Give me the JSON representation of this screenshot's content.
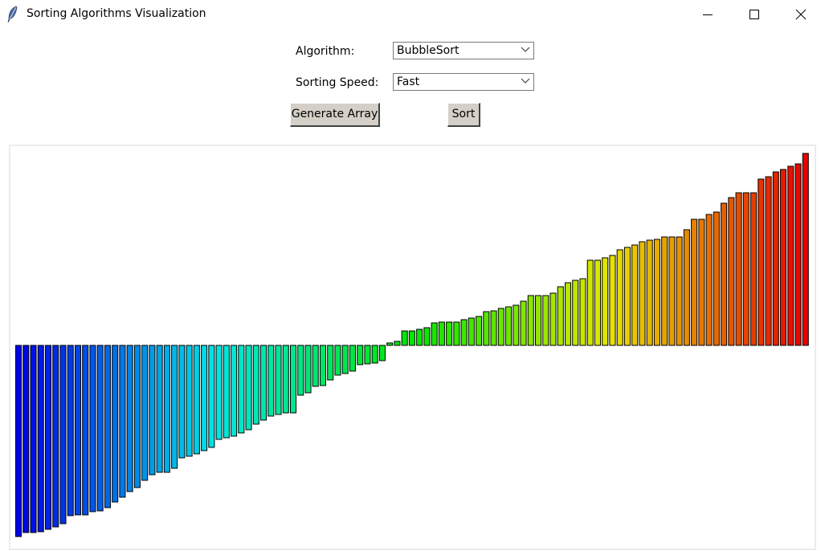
{
  "window": {
    "title": "Sorting Algorithms Visualization",
    "icon": "feather-icon",
    "controls": [
      "minimize-icon",
      "maximize-icon",
      "close-icon"
    ]
  },
  "controls": {
    "algorithm_label": "Algorithm:",
    "algorithm_value": "BubbleSort",
    "speed_label": "Sorting Speed:",
    "speed_value": "Fast",
    "generate_button": "Generate Array",
    "sort_button": "Sort"
  },
  "colors": {
    "button_face": "#d4d0c8",
    "bar_outline": "#000000",
    "gradient_start": "#0000e0",
    "gradient_end": "#e00000"
  },
  "chart_data": {
    "type": "bar",
    "values": [
      238,
      233,
      233,
      232,
      229,
      226,
      222,
      212,
      211,
      211,
      207,
      206,
      202,
      195,
      189,
      182,
      177,
      168,
      161,
      158,
      158,
      153,
      140,
      138,
      135,
      131,
      127,
      117,
      115,
      113,
      109,
      105,
      98,
      93,
      88,
      86,
      84,
      84,
      62,
      59,
      51,
      50,
      43,
      37,
      35,
      32,
      24,
      23,
      22,
      19,
      -3,
      -5,
      -18,
      -18,
      -20,
      -22,
      -28,
      -29,
      -29,
      -29,
      -32,
      -34,
      -36,
      -42,
      -43,
      -46,
      -48,
      -50,
      -55,
      -62,
      -62,
      -62,
      -65,
      -73,
      -78,
      -81,
      -83,
      -106,
      -106,
      -109,
      -112,
      -119,
      -122,
      -125,
      -129,
      -131,
      -132,
      -135,
      -135,
      -135,
      -144,
      -157,
      -157,
      -163,
      -166,
      -177,
      -184,
      -190,
      -190,
      -190,
      -207,
      -210,
      -216,
      -219,
      -223,
      -226,
      -239
    ]
  }
}
